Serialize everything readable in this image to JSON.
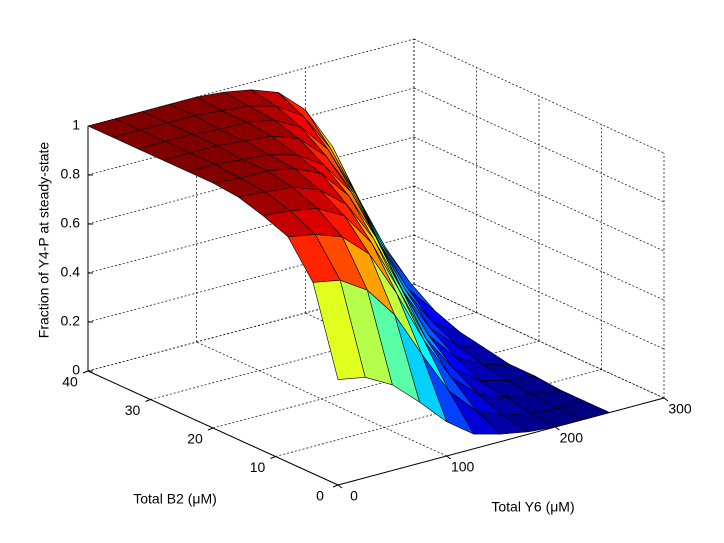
{
  "chart_data": {
    "type": "surface",
    "xlabel": "Total Y6 (μM)",
    "ylabel": "Total B2 (μM)",
    "zlabel": "Fraction of Y4-P at steady-state",
    "colormap": "jet",
    "grid": true,
    "x": [
      0,
      25,
      50,
      75,
      100,
      125,
      150,
      175,
      200,
      225,
      250
    ],
    "y": [
      0,
      4,
      8,
      12,
      16,
      20,
      24,
      28,
      32,
      36,
      40
    ],
    "z": [
      [
        0.43,
        0.41,
        0.35,
        0.25,
        0.14,
        0.06,
        0.03,
        0.01,
        0.0,
        0.0,
        0.0
      ],
      [
        0.78,
        0.76,
        0.69,
        0.56,
        0.37,
        0.19,
        0.08,
        0.03,
        0.01,
        0.0,
        0.0
      ],
      [
        0.92,
        0.9,
        0.86,
        0.76,
        0.57,
        0.35,
        0.17,
        0.07,
        0.03,
        0.01,
        0.0
      ],
      [
        0.96,
        0.95,
        0.93,
        0.87,
        0.73,
        0.51,
        0.28,
        0.13,
        0.05,
        0.02,
        0.01
      ],
      [
        0.99,
        0.98,
        0.97,
        0.93,
        0.84,
        0.67,
        0.44,
        0.22,
        0.1,
        0.04,
        0.01
      ],
      [
        1.0,
        0.99,
        0.99,
        0.97,
        0.92,
        0.8,
        0.6,
        0.35,
        0.17,
        0.07,
        0.03
      ],
      [
        1.0,
        1.0,
        0.99,
        0.98,
        0.95,
        0.88,
        0.74,
        0.51,
        0.28,
        0.12,
        0.05
      ],
      [
        1.0,
        1.0,
        1.0,
        0.99,
        0.98,
        0.94,
        0.84,
        0.66,
        0.42,
        0.21,
        0.09
      ],
      [
        1.0,
        1.0,
        1.0,
        0.99,
        0.99,
        0.97,
        0.91,
        0.79,
        0.58,
        0.34,
        0.16
      ],
      [
        1.0,
        1.0,
        1.0,
        1.0,
        0.99,
        0.98,
        0.95,
        0.88,
        0.72,
        0.49,
        0.26
      ],
      [
        1.0,
        1.0,
        1.0,
        1.0,
        1.0,
        0.99,
        0.97,
        0.93,
        0.83,
        0.65,
        0.4
      ]
    ],
    "xlim": [
      0,
      300
    ],
    "ylim": [
      0,
      40
    ],
    "zlim": [
      0,
      1
    ],
    "xticks": [
      0,
      100,
      200,
      300
    ],
    "yticks": [
      0,
      10,
      20,
      30,
      40
    ],
    "zticks": [
      0,
      0.2,
      0.4,
      0.6,
      0.8,
      1
    ]
  }
}
